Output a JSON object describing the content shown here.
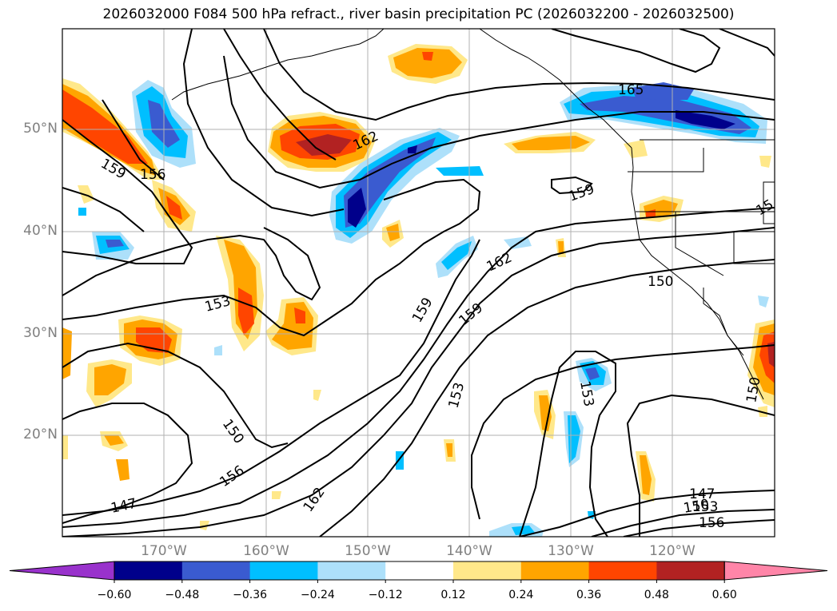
{
  "title": "2026032000 F084 500 hPa refract., river basin precipitation PC (2026032200 - 2026032500)",
  "lat_labels": [
    "50°N",
    "40°N",
    "30°N",
    "20°N"
  ],
  "lon_labels": [
    "170°W",
    "160°W",
    "150°W",
    "140°W",
    "130°W",
    "120°W"
  ],
  "colorbar": {
    "ticks": [
      "−0.60",
      "−0.48",
      "−0.36",
      "−0.24",
      "−0.12",
      "0.12",
      "0.24",
      "0.36",
      "0.48",
      "0.60"
    ],
    "colors": [
      "#9932CC",
      "#00008B",
      "#3A5BD0",
      "#00BFFF",
      "#ADE0FA",
      "#FFFFFF",
      "#FFE88A",
      "#FFA500",
      "#FF4500",
      "#B22222",
      "#FF85A8"
    ]
  },
  "contour_labels": [
    "165",
    "162",
    "159",
    "156",
    "153",
    "150",
    "147",
    "159",
    "162",
    "159",
    "159",
    "153",
    "153",
    "150",
    "150",
    "156",
    "162",
    "147",
    "150",
    "153",
    "156",
    "150",
    "15"
  ]
}
